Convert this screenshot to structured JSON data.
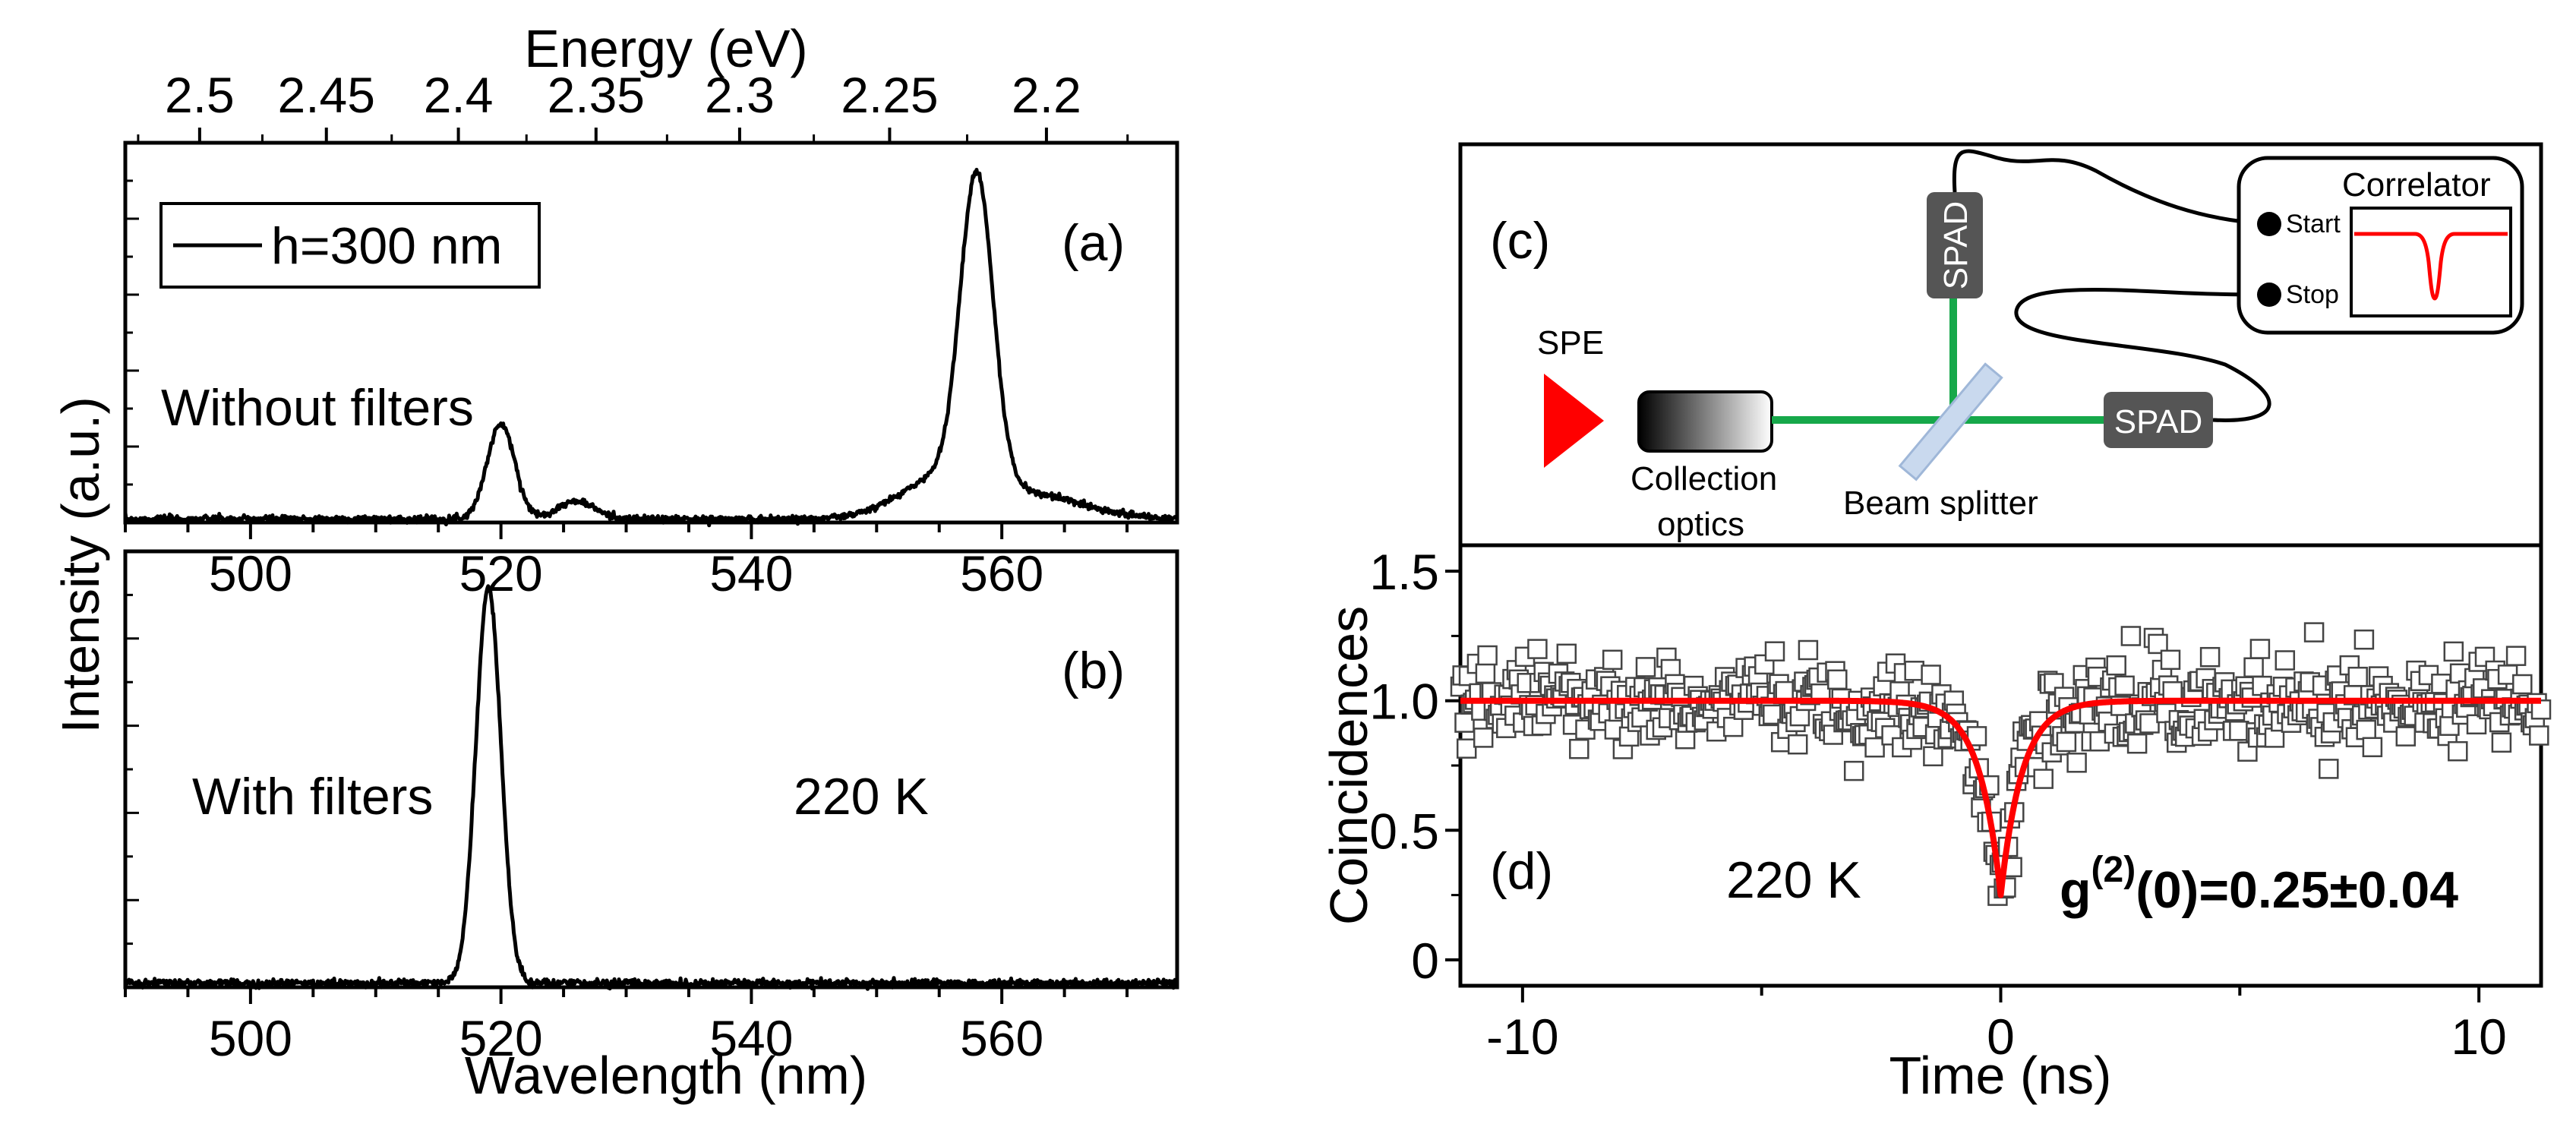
{
  "colors": {
    "spectrum": "#000000",
    "fit": "#ff0000",
    "path": "#16a84a",
    "spad": "#555555",
    "emitter": "#ff0000",
    "splitter": "#c9d9ee"
  },
  "chart_data": [
    {
      "panel": "(a)",
      "type": "line",
      "top_axis": {
        "title": "Energy (eV)",
        "ticks": [
          "2.5",
          "2.45",
          "2.4",
          "2.35",
          "2.3",
          "2.25",
          "2.2"
        ],
        "tick_values": [
          2.5,
          2.45,
          2.4,
          2.35,
          2.3,
          2.25,
          2.2
        ]
      },
      "xlabel": "",
      "xlim": [
        490,
        574
      ],
      "x_ticks": [
        "500",
        "520",
        "540",
        "560"
      ],
      "x_tick_values": [
        500,
        520,
        540,
        560
      ],
      "ylabel": "Intensity (a.u.)",
      "ylim": [
        0,
        1.08
      ],
      "legend": {
        "label": "h=300 nm",
        "placement": "top-left"
      },
      "annotations": [
        "Without filters"
      ],
      "series": [
        {
          "name": "h=300 nm",
          "peaks": [
            {
              "center": 520,
              "height": 0.27,
              "width": 1.1
            },
            {
              "center": 526,
              "height": 0.05,
              "width": 1.5
            },
            {
              "center": 558,
              "height": 0.87,
              "width": 1.3
            },
            {
              "center": 555.5,
              "height": 0.12,
              "width": 3.5
            },
            {
              "center": 563,
              "height": 0.06,
              "width": 4
            }
          ],
          "baseline": 0.01
        }
      ]
    },
    {
      "panel": "(b)",
      "type": "line",
      "xlabel": "Wavelength (nm)",
      "xlim": [
        490,
        574
      ],
      "x_ticks": [
        "500",
        "520",
        "540",
        "560"
      ],
      "x_tick_values": [
        500,
        520,
        540,
        560
      ],
      "ylim": [
        0,
        1.08
      ],
      "annotations": [
        "With filters",
        "220 K"
      ],
      "series": [
        {
          "name": "with filters",
          "peaks": [
            {
              "center": 519,
              "height": 0.98,
              "width": 1.0
            }
          ],
          "baseline": 0.01
        }
      ]
    },
    {
      "panel": "(d)",
      "type": "scatter",
      "xlabel": "Time (ns)",
      "ylabel": "Coincidences",
      "xlim": [
        -11.3,
        11.3
      ],
      "ylim": [
        -0.1,
        1.6
      ],
      "x_ticks": [
        "-10",
        "0",
        "10"
      ],
      "x_tick_values": [
        -10,
        0,
        10
      ],
      "y_ticks": [
        "0",
        "0.5",
        "1.0",
        "1.5"
      ],
      "y_tick_values": [
        0,
        0.5,
        1.0,
        1.5
      ],
      "annotations": [
        "220 K"
      ],
      "g2_label": {
        "prefix": "g",
        "sup": "(2)",
        "suffix": "(0)=0.25±0.04"
      },
      "fit": {
        "type": "antibunching",
        "baseline": 1.0,
        "g2_zero": 0.25,
        "tau_ns": 0.45
      },
      "scatter": {
        "n_points": 520,
        "noise_sd": 0.09
      }
    }
  ],
  "panels": {
    "a": {
      "label": "(a)"
    },
    "b": {
      "label": "(b)"
    },
    "c": {
      "label": "(c)"
    },
    "d": {
      "label": "(d)"
    }
  },
  "schematic": {
    "emitter_label": "SPE",
    "optics_label_1": "Collection",
    "optics_label_2": "optics",
    "splitter_label": "Beam splitter",
    "spad_top": "SPAD",
    "spad_right": "SPAD",
    "correlator_title": "Correlator",
    "start_label": "Start",
    "stop_label": "Stop"
  }
}
